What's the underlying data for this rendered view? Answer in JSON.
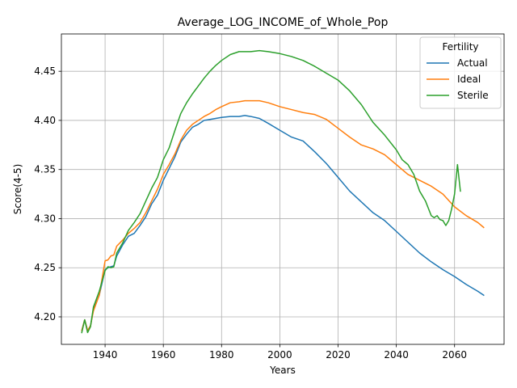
{
  "chart_data": {
    "type": "line",
    "title": "Average_LOG_INCOME_of_Whole_Pop",
    "xlabel": "Years",
    "ylabel": "Score(4-5)",
    "xlim": [
      1925,
      2077
    ],
    "ylim": [
      4.172,
      4.488
    ],
    "grid": true,
    "legend_title": "Fertility",
    "legend_position": "top-right",
    "x_ticks": [
      1940,
      1960,
      1980,
      2000,
      2020,
      2040,
      2060
    ],
    "x_tick_labels": [
      "1940",
      "1960",
      "1980",
      "2000",
      "2020",
      "2040",
      "2060"
    ],
    "y_ticks": [
      4.2,
      4.25,
      4.3,
      4.35,
      4.4,
      4.45
    ],
    "y_tick_labels": [
      "4.20",
      "4.25",
      "4.30",
      "4.35",
      "4.40",
      "4.45"
    ],
    "series": [
      {
        "name": "Actual",
        "color": "#1f77b4",
        "points": [
          [
            1932,
            4.186
          ],
          [
            1933,
            4.197
          ],
          [
            1934,
            4.186
          ],
          [
            1935,
            4.191
          ],
          [
            1936,
            4.208
          ],
          [
            1938,
            4.222
          ],
          [
            1940,
            4.248
          ],
          [
            1941,
            4.25
          ],
          [
            1942,
            4.251
          ],
          [
            1943,
            4.252
          ],
          [
            1944,
            4.262
          ],
          [
            1946,
            4.273
          ],
          [
            1948,
            4.282
          ],
          [
            1950,
            4.285
          ],
          [
            1952,
            4.293
          ],
          [
            1954,
            4.302
          ],
          [
            1956,
            4.315
          ],
          [
            1958,
            4.324
          ],
          [
            1960,
            4.339
          ],
          [
            1962,
            4.351
          ],
          [
            1964,
            4.363
          ],
          [
            1966,
            4.378
          ],
          [
            1968,
            4.386
          ],
          [
            1970,
            4.393
          ],
          [
            1972,
            4.396
          ],
          [
            1974,
            4.4
          ],
          [
            1976,
            4.401
          ],
          [
            1978,
            4.402
          ],
          [
            1980,
            4.403
          ],
          [
            1983,
            4.404
          ],
          [
            1986,
            4.404
          ],
          [
            1988,
            4.405
          ],
          [
            1990,
            4.404
          ],
          [
            1993,
            4.402
          ],
          [
            1996,
            4.397
          ],
          [
            2000,
            4.39
          ],
          [
            2004,
            4.383
          ],
          [
            2008,
            4.379
          ],
          [
            2012,
            4.368
          ],
          [
            2016,
            4.356
          ],
          [
            2020,
            4.342
          ],
          [
            2024,
            4.328
          ],
          [
            2028,
            4.317
          ],
          [
            2032,
            4.306
          ],
          [
            2036,
            4.298
          ],
          [
            2040,
            4.287
          ],
          [
            2044,
            4.276
          ],
          [
            2048,
            4.265
          ],
          [
            2052,
            4.256
          ],
          [
            2056,
            4.248
          ],
          [
            2060,
            4.241
          ],
          [
            2064,
            4.233
          ],
          [
            2068,
            4.226
          ],
          [
            2070,
            4.222
          ]
        ]
      },
      {
        "name": "Ideal",
        "color": "#ff7f0e",
        "points": [
          [
            1932,
            4.186
          ],
          [
            1933,
            4.197
          ],
          [
            1934,
            4.186
          ],
          [
            1935,
            4.191
          ],
          [
            1936,
            4.206
          ],
          [
            1938,
            4.222
          ],
          [
            1940,
            4.257
          ],
          [
            1941,
            4.258
          ],
          [
            1942,
            4.262
          ],
          [
            1943,
            4.263
          ],
          [
            1944,
            4.272
          ],
          [
            1946,
            4.278
          ],
          [
            1948,
            4.285
          ],
          [
            1950,
            4.29
          ],
          [
            1952,
            4.296
          ],
          [
            1954,
            4.306
          ],
          [
            1956,
            4.318
          ],
          [
            1958,
            4.33
          ],
          [
            1960,
            4.345
          ],
          [
            1962,
            4.355
          ],
          [
            1964,
            4.366
          ],
          [
            1966,
            4.38
          ],
          [
            1968,
            4.39
          ],
          [
            1970,
            4.396
          ],
          [
            1972,
            4.4
          ],
          [
            1974,
            4.404
          ],
          [
            1976,
            4.407
          ],
          [
            1978,
            4.411
          ],
          [
            1980,
            4.414
          ],
          [
            1983,
            4.418
          ],
          [
            1986,
            4.419
          ],
          [
            1988,
            4.42
          ],
          [
            1990,
            4.42
          ],
          [
            1993,
            4.42
          ],
          [
            1996,
            4.418
          ],
          [
            2000,
            4.414
          ],
          [
            2004,
            4.411
          ],
          [
            2008,
            4.408
          ],
          [
            2012,
            4.406
          ],
          [
            2016,
            4.401
          ],
          [
            2020,
            4.392
          ],
          [
            2024,
            4.383
          ],
          [
            2028,
            4.375
          ],
          [
            2032,
            4.371
          ],
          [
            2036,
            4.365
          ],
          [
            2040,
            4.355
          ],
          [
            2044,
            4.345
          ],
          [
            2048,
            4.339
          ],
          [
            2052,
            4.333
          ],
          [
            2056,
            4.325
          ],
          [
            2060,
            4.312
          ],
          [
            2064,
            4.303
          ],
          [
            2068,
            4.296
          ],
          [
            2070,
            4.291
          ]
        ]
      },
      {
        "name": "Sterile",
        "color": "#2ca02c",
        "points": [
          [
            1932,
            4.184
          ],
          [
            1933,
            4.197
          ],
          [
            1934,
            4.184
          ],
          [
            1935,
            4.19
          ],
          [
            1936,
            4.21
          ],
          [
            1938,
            4.226
          ],
          [
            1940,
            4.247
          ],
          [
            1941,
            4.251
          ],
          [
            1942,
            4.25
          ],
          [
            1943,
            4.251
          ],
          [
            1944,
            4.265
          ],
          [
            1946,
            4.275
          ],
          [
            1948,
            4.288
          ],
          [
            1950,
            4.296
          ],
          [
            1952,
            4.305
          ],
          [
            1954,
            4.318
          ],
          [
            1956,
            4.331
          ],
          [
            1958,
            4.342
          ],
          [
            1960,
            4.36
          ],
          [
            1962,
            4.372
          ],
          [
            1964,
            4.39
          ],
          [
            1966,
            4.407
          ],
          [
            1968,
            4.418
          ],
          [
            1970,
            4.427
          ],
          [
            1972,
            4.435
          ],
          [
            1974,
            4.443
          ],
          [
            1976,
            4.45
          ],
          [
            1978,
            4.456
          ],
          [
            1980,
            4.461
          ],
          [
            1983,
            4.467
          ],
          [
            1986,
            4.47
          ],
          [
            1988,
            4.47
          ],
          [
            1990,
            4.47
          ],
          [
            1993,
            4.471
          ],
          [
            1996,
            4.47
          ],
          [
            2000,
            4.468
          ],
          [
            2004,
            4.465
          ],
          [
            2008,
            4.461
          ],
          [
            2012,
            4.455
          ],
          [
            2016,
            4.448
          ],
          [
            2020,
            4.441
          ],
          [
            2024,
            4.43
          ],
          [
            2028,
            4.416
          ],
          [
            2032,
            4.398
          ],
          [
            2036,
            4.385
          ],
          [
            2040,
            4.37
          ],
          [
            2042,
            4.36
          ],
          [
            2044,
            4.355
          ],
          [
            2046,
            4.345
          ],
          [
            2048,
            4.328
          ],
          [
            2050,
            4.318
          ],
          [
            2052,
            4.303
          ],
          [
            2053,
            4.301
          ],
          [
            2054,
            4.303
          ],
          [
            2055,
            4.299
          ],
          [
            2056,
            4.298
          ],
          [
            2057,
            4.293
          ],
          [
            2058,
            4.298
          ],
          [
            2059,
            4.31
          ],
          [
            2060,
            4.325
          ],
          [
            2061,
            4.355
          ],
          [
            2062,
            4.328
          ]
        ]
      }
    ]
  }
}
